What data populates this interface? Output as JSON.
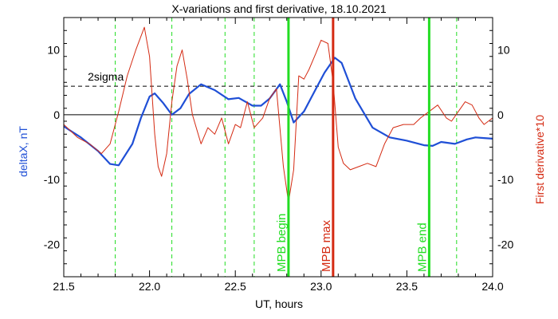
{
  "chart_data": {
    "type": "line",
    "title": "X-variations and first derivative, 18.10.2021",
    "xlabel": "UT, hours",
    "ylabel_left": "deltaX, nT",
    "ylabel_right": "First derivative*10",
    "xlim": [
      21.5,
      24.0
    ],
    "ylim": [
      -25,
      15
    ],
    "x_ticks": [
      21.5,
      22.0,
      22.5,
      23.0,
      23.5,
      24.0
    ],
    "x_tick_labels": [
      "21.5",
      "22.0",
      "22.5",
      "23.0",
      "23.5",
      "24.0"
    ],
    "y_ticks": [
      -20,
      -10,
      0,
      10
    ],
    "y_tick_labels": [
      "-20",
      "-10",
      "0",
      "10"
    ],
    "grid": false,
    "colors": {
      "deltax": "#1f4fd6",
      "derivative": "#d42a12",
      "mpb": "#22dd22",
      "mpb_max": "#d42a12",
      "extrema": "#22dd22",
      "axis": "#000000"
    },
    "reference_lines": [
      {
        "name": "zero",
        "y": 0,
        "style": "solid"
      },
      {
        "name": "2sigma",
        "y": 4.4,
        "style": "dashed",
        "label": "2sigma"
      }
    ],
    "vertical_markers": [
      {
        "x": 22.81,
        "label": "MPB begin",
        "color": "#22dd22"
      },
      {
        "x": 23.07,
        "label": "MPB max",
        "color": "#d42a12"
      },
      {
        "x": 23.63,
        "label": "MPB end",
        "color": "#22dd22"
      }
    ],
    "extrema_lines": [
      21.8,
      22.13,
      22.44,
      22.61,
      22.81,
      23.79
    ],
    "series": [
      {
        "key": "deltax",
        "x": [
          21.5,
          21.6,
          21.7,
          21.77,
          21.82,
          21.9,
          21.95,
          22.0,
          22.03,
          22.08,
          22.13,
          22.18,
          22.23,
          22.3,
          22.38,
          22.46,
          22.52,
          22.6,
          22.65,
          22.7,
          22.76,
          22.8,
          22.84,
          22.9,
          22.97,
          23.02,
          23.08,
          23.12,
          23.2,
          23.3,
          23.4,
          23.5,
          23.6,
          23.65,
          23.7,
          23.78,
          23.85,
          23.9,
          23.95,
          24.0
        ],
        "values": [
          -1.8,
          -3.5,
          -5.6,
          -7.6,
          -7.8,
          -4.5,
          -0.5,
          2.8,
          3.3,
          1.8,
          0.0,
          1.0,
          3.2,
          4.7,
          3.8,
          2.4,
          2.6,
          1.4,
          1.4,
          2.5,
          4.7,
          2.0,
          -1.2,
          0.5,
          4.0,
          6.5,
          8.8,
          8.0,
          2.5,
          -2.0,
          -3.5,
          -4.0,
          -4.7,
          -4.8,
          -4.2,
          -4.5,
          -3.8,
          -3.5,
          -3.6,
          -3.7
        ]
      },
      {
        "key": "derivative",
        "x": [
          21.5,
          21.58,
          21.65,
          21.72,
          21.77,
          21.82,
          21.87,
          21.92,
          21.97,
          22.0,
          22.03,
          22.05,
          22.07,
          22.1,
          22.13,
          22.16,
          22.19,
          22.22,
          22.25,
          22.3,
          22.34,
          22.38,
          22.42,
          22.46,
          22.5,
          22.53,
          22.57,
          22.61,
          22.66,
          22.7,
          22.74,
          22.78,
          22.81,
          22.84,
          22.87,
          22.9,
          22.93,
          22.97,
          23.0,
          23.04,
          23.07,
          23.1,
          23.13,
          23.17,
          23.22,
          23.27,
          23.32,
          23.37,
          23.42,
          23.48,
          23.54,
          23.58,
          23.63,
          23.68,
          23.73,
          23.76,
          23.8,
          23.84,
          23.88,
          23.92,
          23.95,
          24.0
        ],
        "values": [
          -1.5,
          -3.5,
          -4.5,
          -6.0,
          -4.5,
          0.5,
          6.0,
          10.0,
          13.5,
          9.0,
          -3.0,
          -8.0,
          -9.5,
          -6.0,
          2.0,
          7.5,
          10.0,
          5.5,
          0.0,
          -4.5,
          -2.0,
          -3.0,
          -0.5,
          -4.5,
          -1.5,
          -2.0,
          2.0,
          -2.0,
          -0.5,
          2.5,
          4.0,
          -8.0,
          -13.5,
          -8.5,
          6.0,
          5.5,
          7.0,
          9.5,
          11.5,
          11.0,
          5.0,
          -5.0,
          -7.5,
          -8.5,
          -8.0,
          -7.5,
          -8.0,
          -4.5,
          -2.0,
          -1.5,
          -1.5,
          -0.5,
          0.5,
          1.5,
          -0.5,
          -1.0,
          0.5,
          2.0,
          1.5,
          -0.5,
          -1.5,
          -0.5
        ]
      }
    ]
  }
}
